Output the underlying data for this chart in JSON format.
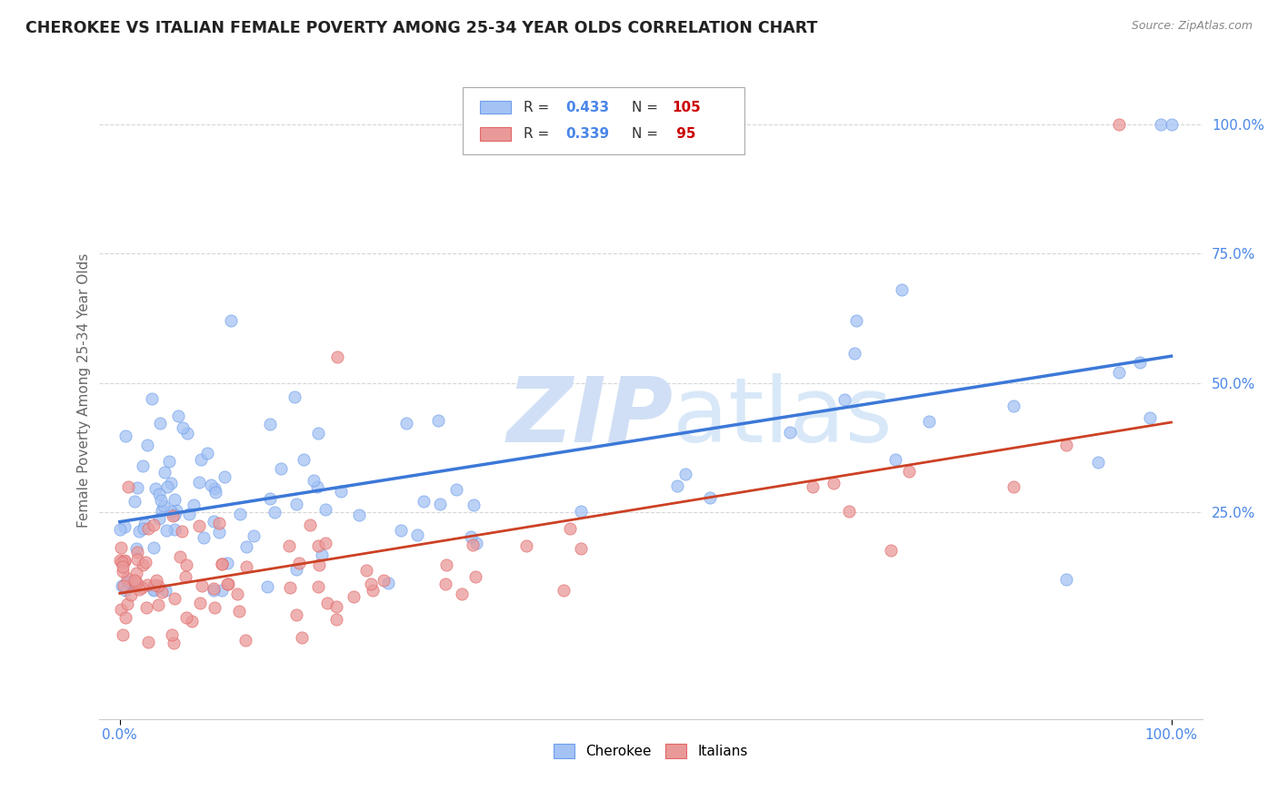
{
  "title": "CHEROKEE VS ITALIAN FEMALE POVERTY AMONG 25-34 YEAR OLDS CORRELATION CHART",
  "source": "Source: ZipAtlas.com",
  "ylabel": "Female Poverty Among 25-34 Year Olds",
  "cherokee_color": "#a4c2f4",
  "cherokee_edge_color": "#6d9eeb",
  "italian_color": "#ea9999",
  "italian_edge_color": "#e06666",
  "cherokee_line_color": "#3c78d8",
  "italian_line_color": "#cc4125",
  "background_color": "#ffffff",
  "grid_color": "#cccccc",
  "tick_color": "#4a86e8",
  "text_color": "#666666",
  "legend_R_color": "#4a86e8",
  "legend_N_color": "#cc0000",
  "watermark_color": "#d0dff5"
}
